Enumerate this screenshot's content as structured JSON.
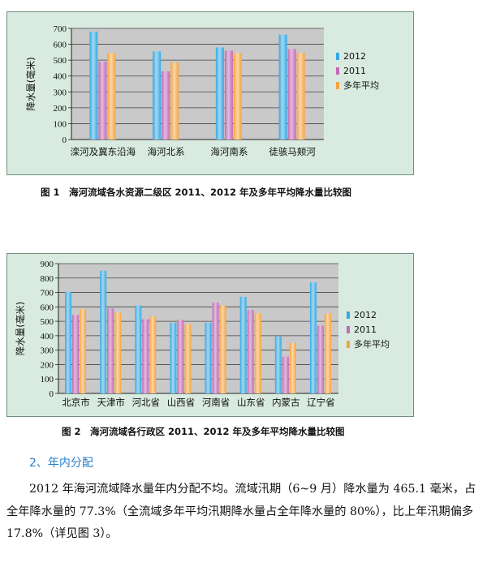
{
  "colors": {
    "series_2012": "#35a9e3",
    "series_2011": "#c06bb5",
    "series_avg": "#f6a43e",
    "plot_bg": "#c9c9c9",
    "panel_bg": "#d9ebe0",
    "heading": "#2a7fc9"
  },
  "chart_data": [
    {
      "type": "bar",
      "ylabel": "降水量(毫米)",
      "ylim": [
        0,
        700
      ],
      "yticks": [
        0,
        100,
        200,
        300,
        400,
        500,
        600,
        700
      ],
      "grid": true,
      "legend_position": "right",
      "categories": [
        "滦河及冀东沿海",
        "海河北系",
        "海河南系",
        "徒骇马颊河"
      ],
      "series": [
        {
          "name": "2012",
          "values": [
            680,
            555,
            580,
            660
          ]
        },
        {
          "name": "2011",
          "values": [
            490,
            430,
            560,
            570
          ]
        },
        {
          "name": "多年平均",
          "values": [
            545,
            485,
            545,
            545
          ]
        }
      ]
    },
    {
      "type": "bar",
      "ylabel": "降水量(毫米)",
      "ylim": [
        0,
        900
      ],
      "yticks": [
        0,
        100,
        200,
        300,
        400,
        500,
        600,
        700,
        800,
        900
      ],
      "grid": true,
      "legend_position": "right",
      "categories": [
        "北京市",
        "天津市",
        "河北省",
        "山西省",
        "河南省",
        "山东省",
        "内蒙古",
        "辽宁省"
      ],
      "series": [
        {
          "name": "2012",
          "values": [
            705,
            850,
            610,
            490,
            490,
            670,
            395,
            770
          ]
        },
        {
          "name": "2011",
          "values": [
            545,
            590,
            515,
            510,
            630,
            580,
            255,
            470
          ]
        },
        {
          "name": "多年平均",
          "values": [
            585,
            560,
            535,
            480,
            610,
            555,
            350,
            555
          ]
        }
      ]
    }
  ],
  "figure1_caption": "图 1　海河流域各水资源二级区 2011、2012 年及多年平均降水量比较图",
  "figure2_caption": "图 2　海河流域各行政区 2011、2012 年及多年平均降水量比较图",
  "section_heading": "2、年内分配",
  "paragraph": "2012 年海河流域降水量年内分配不均。流域汛期（6~9 月）降水量为 465.1 毫米，占全年降水量的 77.3%（全流域多年平均汛期降水量占全年降水量的 80%），比上年汛期偏多 17.8%（详见图 3）。"
}
